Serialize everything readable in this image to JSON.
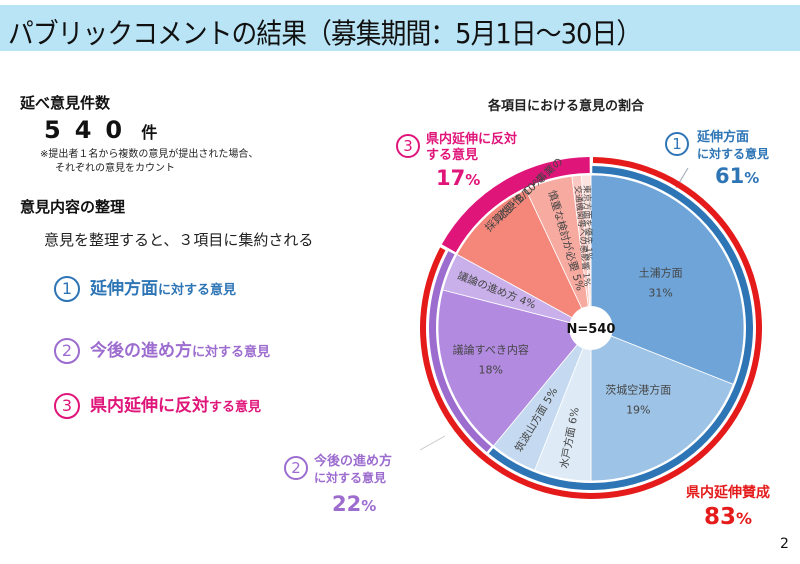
{
  "header": {
    "title": "パブリックコメントの結果（募集期間：5月1日～30日）"
  },
  "left": {
    "total_heading": "延べ意見件数",
    "total_count": "540",
    "total_unit": "件",
    "note_line1": "※提出者１名から複数の意見が提出された場合、",
    "note_line2": "それぞれの意見をカウント",
    "organize_heading": "意見内容の整理",
    "organize_summary": "意見を整理すると、３項目に集約される",
    "categories": [
      {
        "num": "1",
        "main": "延伸方面",
        "suffix": "に対する意見",
        "color": "#2e75b6"
      },
      {
        "num": "2",
        "main": "今後の進め方",
        "suffix": "に対する意見",
        "color": "#9c6ccf"
      },
      {
        "num": "3",
        "main": "県内延伸に反対",
        "suffix": "する意見",
        "color": "#e0157a"
      }
    ]
  },
  "chart_data": {
    "type": "pie",
    "title": "各項目における意見の割合",
    "center_label": "N=540",
    "total_n": 540,
    "start": "12 o'clock, clockwise",
    "slices": [
      {
        "label": "土浦方面",
        "value": 31,
        "group": 1,
        "color": "#6fa4d8"
      },
      {
        "label": "茨城空港方面",
        "value": 19,
        "group": 1,
        "color": "#9dc3e6"
      },
      {
        "label": "水戸方面",
        "value": 6,
        "group": 1,
        "color": "#deebf7"
      },
      {
        "label": "筑波山方面",
        "value": 5,
        "group": 1,
        "color": "#c5daf0"
      },
      {
        "label": "議論すべき内容",
        "value": 18,
        "group": 2,
        "color": "#b28ae0"
      },
      {
        "label": "議論の進め方",
        "value": 4,
        "group": 2,
        "color": "#c9b0ea"
      },
      {
        "label": "採算性・B/C・事業の必要性",
        "value": 10,
        "group": 3,
        "color": "#f4877a"
      },
      {
        "label": "慎重な検討が必要",
        "value": 5,
        "group": 3,
        "color": "#f6aaa0"
      },
      {
        "label": "交通機関等への悪影響",
        "value": 1,
        "group": 3,
        "color": "#f9c8c2"
      },
      {
        "label": "東京方面を優先",
        "value": 1,
        "group": 3,
        "color": "#fbe3e0"
      }
    ],
    "groups": [
      {
        "id": 1,
        "num": "1",
        "label_line1": "延伸方面",
        "label_line2": "に対する意見",
        "value": 61,
        "pct_text": "61",
        "ring_color": "#2e75b6"
      },
      {
        "id": 2,
        "num": "2",
        "label_line1": "今後の進め方",
        "label_line2": "に対する意見",
        "value": 22,
        "pct_text": "22",
        "ring_color": "#9c6ccf"
      },
      {
        "id": 3,
        "num": "3",
        "label_line1": "県内延伸に反対",
        "label_line2": "する意見",
        "value": 17,
        "pct_text": "17",
        "ring_color": "#e0157a"
      }
    ],
    "outer_ring": {
      "label": "県内延伸賛成",
      "value": 83,
      "pct_text": "83",
      "color": "#e51b1b"
    },
    "pct_symbol": "%"
  },
  "footer": {
    "page_number": "2"
  }
}
